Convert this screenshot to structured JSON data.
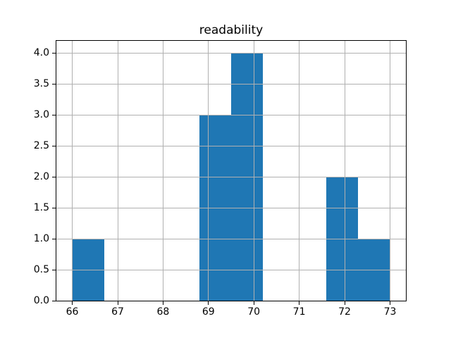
{
  "figure": {
    "background_color": "#ffffff"
  },
  "chart_data": {
    "type": "histogram",
    "title": "readability",
    "xlabel": "",
    "ylabel": "",
    "bar_color": "#1f77b4",
    "grid": true,
    "grid_color": "#b0b0b0",
    "grid_over_bars": true,
    "xlim": [
      65.65,
      73.35
    ],
    "ylim": [
      0,
      4.2
    ],
    "bin_edges": [
      66.0,
      66.7,
      67.4,
      68.1,
      68.8,
      69.5,
      70.2,
      70.9,
      71.6,
      72.3,
      73.0
    ],
    "counts": [
      1,
      0,
      0,
      0,
      3,
      4,
      0,
      0,
      2,
      1
    ],
    "x_ticks": [
      66,
      67,
      68,
      69,
      70,
      71,
      72,
      73
    ],
    "x_tick_labels": [
      "66",
      "67",
      "68",
      "69",
      "70",
      "71",
      "72",
      "73"
    ],
    "y_ticks": [
      0.0,
      0.5,
      1.0,
      1.5,
      2.0,
      2.5,
      3.0,
      3.5,
      4.0
    ],
    "y_tick_labels": [
      "0.0",
      "0.5",
      "1.0",
      "1.5",
      "2.0",
      "2.5",
      "3.0",
      "3.5",
      "4.0"
    ]
  }
}
